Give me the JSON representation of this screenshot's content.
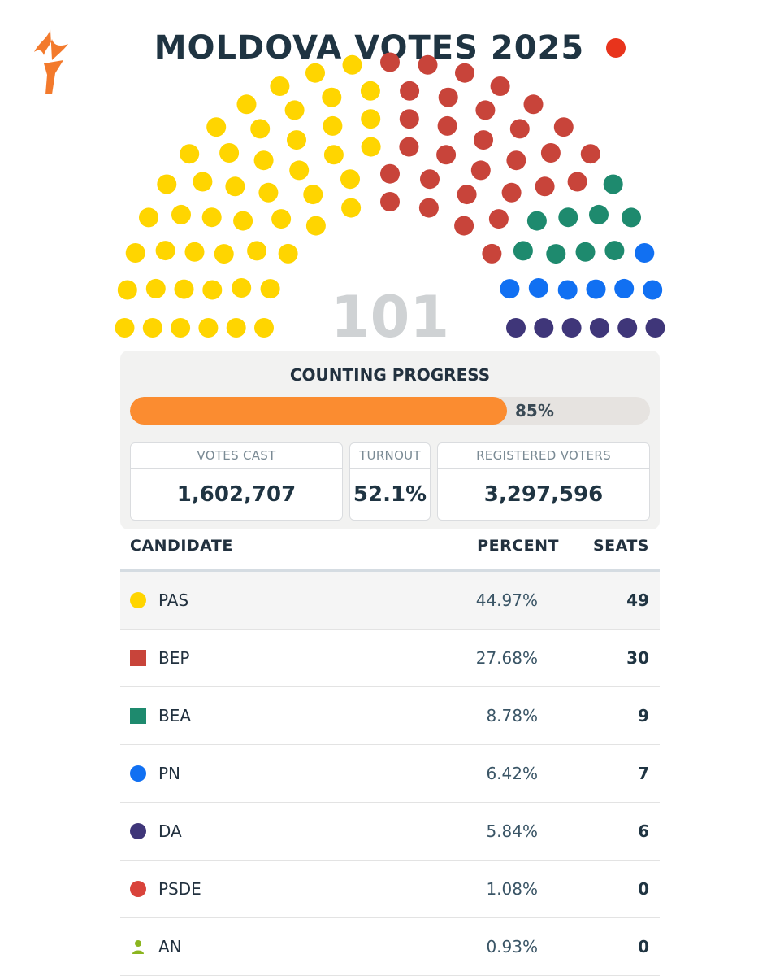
{
  "header": {
    "title": "MOLDOVA VOTES 2025",
    "logo": "torch-logo-icon",
    "logo_color": "#f37a2c",
    "live_color": "#e8341c"
  },
  "chart_data": {
    "type": "hemicycle",
    "total_seats": "101",
    "total_color": "#cfd2d4",
    "series": [
      {
        "name": "PAS",
        "seats": 49,
        "color": "#ffd500"
      },
      {
        "name": "BEP",
        "seats": 30,
        "color": "#c8443a"
      },
      {
        "name": "BEA",
        "seats": 9,
        "color": "#1e8a6e"
      },
      {
        "name": "PN",
        "seats": 7,
        "color": "#1170f2"
      },
      {
        "name": "DA",
        "seats": 6,
        "color": "#3f3679"
      }
    ]
  },
  "progress": {
    "title": "COUNTING PROGRESS",
    "value": 85,
    "label": "85%",
    "color": "#fb8c30"
  },
  "stats": {
    "votes_cast": {
      "label": "VOTES CAST",
      "value": "1,602,707"
    },
    "turnout": {
      "label": "TURNOUT",
      "value": "52.1%"
    },
    "registered": {
      "label": "REGISTERED VOTERS",
      "value": "3,297,596"
    }
  },
  "table": {
    "headers": {
      "candidate": "CANDIDATE",
      "percent": "PERCENT",
      "seats": "SEATS"
    },
    "rows": [
      {
        "name": "PAS",
        "percent": "44.97%",
        "seats": "49",
        "marker": "circle",
        "color": "#ffd500"
      },
      {
        "name": "BEP",
        "percent": "27.68%",
        "seats": "30",
        "marker": "square",
        "color": "#c8443a"
      },
      {
        "name": "BEA",
        "percent": "8.78%",
        "seats": "9",
        "marker": "square",
        "color": "#1e8a6e"
      },
      {
        "name": "PN",
        "percent": "6.42%",
        "seats": "7",
        "marker": "circle",
        "color": "#1170f2"
      },
      {
        "name": "DA",
        "percent": "5.84%",
        "seats": "6",
        "marker": "circle",
        "color": "#3f3679"
      },
      {
        "name": "PSDE",
        "percent": "1.08%",
        "seats": "0",
        "marker": "circle",
        "color": "#d9433b"
      },
      {
        "name": "AN",
        "percent": "0.93%",
        "seats": "0",
        "marker": "person",
        "color": "#8bb51f"
      }
    ]
  }
}
